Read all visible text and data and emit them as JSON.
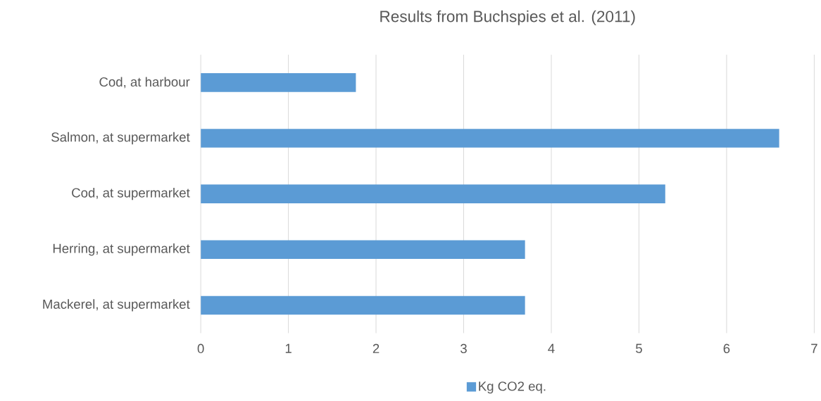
{
  "chart_data": {
    "type": "bar",
    "orientation": "horizontal",
    "title": "Results from Buchspies et al. (2011)",
    "categories": [
      "Cod, at harbour",
      "Salmon, at supermarket",
      "Cod, at supermarket",
      "Herring, at supermarket",
      "Mackerel, at supermarket"
    ],
    "series": [
      {
        "name": "Kg CO2 eq.",
        "color": "#5b9bd5",
        "values": [
          1.77,
          6.6,
          5.3,
          3.7,
          3.7
        ]
      }
    ],
    "xlim": [
      0,
      7
    ],
    "xticks": [
      0,
      1,
      2,
      3,
      4,
      5,
      6,
      7
    ],
    "grid": "x",
    "legend": "bottom"
  }
}
